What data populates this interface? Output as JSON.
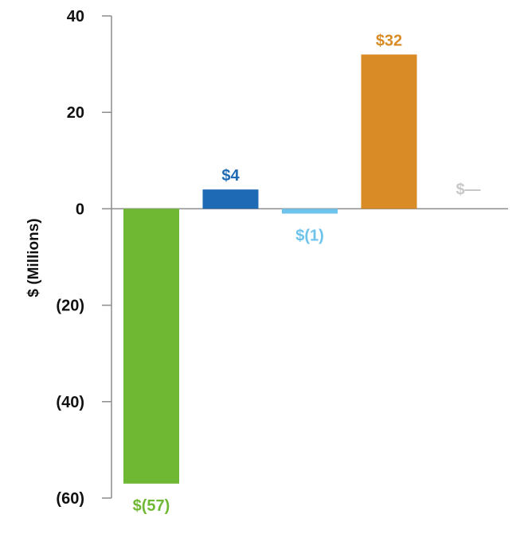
{
  "chart_data": {
    "type": "bar",
    "title": "",
    "xlabel": "",
    "ylabel": "$ (Millions)",
    "ylim": [
      -60,
      40
    ],
    "yticks": [
      40,
      20,
      0,
      -20,
      -40,
      -60
    ],
    "ytick_labels": [
      "40",
      "20",
      "0",
      "(20)",
      "(40)",
      "(60)"
    ],
    "grid": false,
    "categories": [
      "",
      "",
      "",
      "",
      ""
    ],
    "values": [
      -57,
      4,
      -1,
      32,
      0
    ],
    "data_labels": [
      "$(57)",
      "$4",
      "$(1)",
      "$32",
      "$—"
    ],
    "colors": [
      "#6fb833",
      "#1f6ab4",
      "#6ec3ec",
      "#d98c26",
      "#c8c8c8"
    ]
  }
}
